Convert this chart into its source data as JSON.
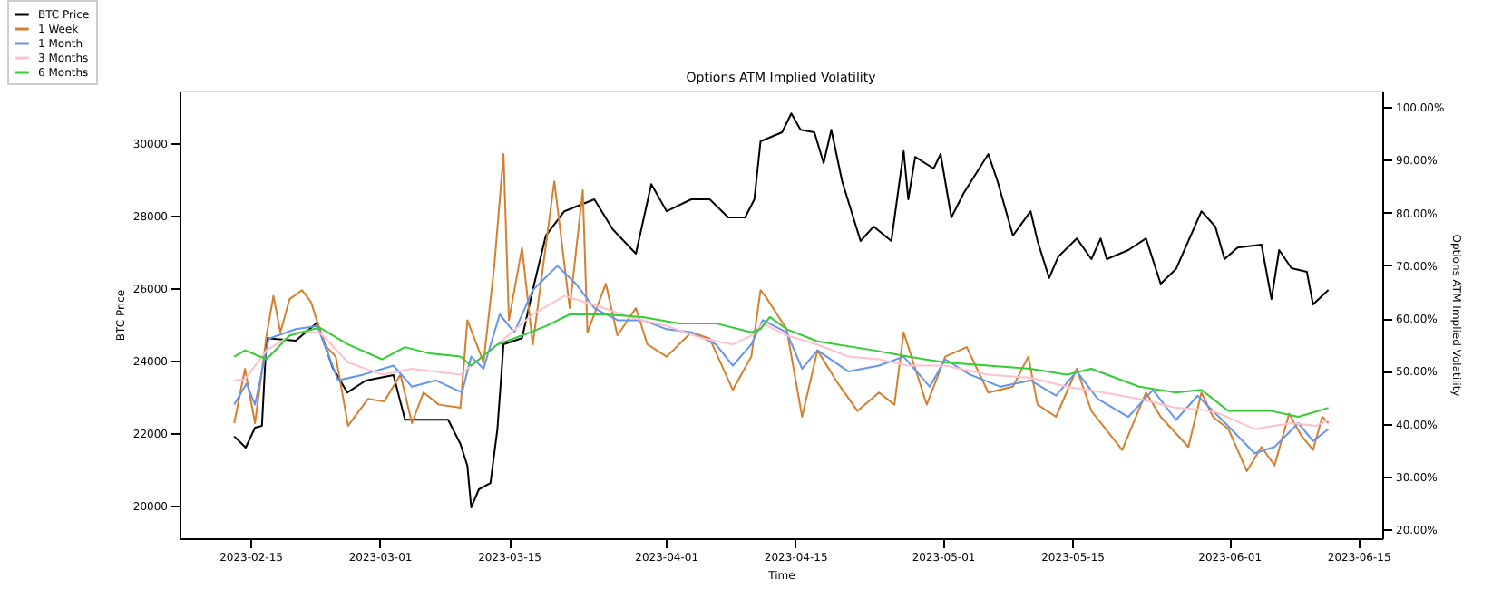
{
  "chart_data": {
    "type": "line",
    "title": "Options ATM Implied Volatility",
    "xlabel": "Time",
    "ylabel": "BTC Price",
    "y2label": "Options ATM Implied Volatility",
    "xlim": [
      "2023-02-07T08:00",
      "2023-06-17T14:00"
    ],
    "xticks": [
      "2023-02-15",
      "2023-03-01",
      "2023-03-15",
      "2023-04-01",
      "2023-04-15",
      "2023-05-01",
      "2023-05-15",
      "2023-06-01",
      "2023-06-15"
    ],
    "ylim": [
      19100,
      31450
    ],
    "yticks": [
      20000,
      22000,
      24000,
      26000,
      28000,
      30000
    ],
    "y2lim": [
      18.3,
      103.1
    ],
    "y2ticks": [
      {
        "value": 20,
        "label": "20.00%"
      },
      {
        "value": 30,
        "label": "30.00%"
      },
      {
        "value": 40,
        "label": "40.00%"
      },
      {
        "value": 50,
        "label": "50.00%"
      },
      {
        "value": 60,
        "label": "60.00%"
      },
      {
        "value": 70,
        "label": "70.00%"
      },
      {
        "value": 80,
        "label": "80.00%"
      },
      {
        "value": 90,
        "label": "90.00%"
      },
      {
        "value": 100,
        "label": "100.00%"
      }
    ],
    "legend": "top left",
    "grid": false,
    "marker": "none",
    "line_style": "solid",
    "series": [
      {
        "name": "BTC Price",
        "color": "#000000",
        "x": [
          "2023-02-13T06:00",
          "2023-02-14T12:00",
          "2023-02-15T12:00",
          "2023-02-16T06:00",
          "2023-02-16T18:00",
          "2023-02-19T22:00",
          "2023-02-22T06:00",
          "2023-02-23T22:00",
          "2023-02-25T12:00",
          "2023-02-27T12:00",
          "2023-03-02T12:00",
          "2023-03-03T18:00",
          "2023-03-05T18:00",
          "2023-03-08T10:00",
          "2023-03-09T18:00",
          "2023-03-10T12:00",
          "2023-03-10T22:00",
          "2023-03-11T18:00",
          "2023-03-13T00:00",
          "2023-03-13T18:00",
          "2023-03-14T10:00",
          "2023-03-16T10:00",
          "2023-03-17T14:00",
          "2023-03-19T00:00",
          "2023-03-21T00:00",
          "2023-03-24T06:00",
          "2023-03-26T06:00",
          "2023-03-28T18:00",
          "2023-03-30T10:00",
          "2023-04-01T02:00",
          "2023-04-03T18:00",
          "2023-04-05T18:00",
          "2023-04-07T18:00",
          "2023-04-09T14:00",
          "2023-04-10T14:00",
          "2023-04-11T06:00",
          "2023-04-13T14:00",
          "2023-04-14T14:00",
          "2023-04-15T14:00",
          "2023-04-17T02:00",
          "2023-04-18T02:00",
          "2023-04-18T22:00",
          "2023-04-20T02:00",
          "2023-04-22T02:00",
          "2023-04-23T12:00",
          "2023-04-25T10:00",
          "2023-04-26T18:00",
          "2023-04-27T06:00",
          "2023-04-28T00:00",
          "2023-04-30T00:00",
          "2023-04-30T18:00",
          "2023-05-01T22:00",
          "2023-05-03T06:00",
          "2023-05-05T22:00",
          "2023-05-06T22:00",
          "2023-05-08T14:00",
          "2023-05-10T12:00",
          "2023-05-11T06:00",
          "2023-05-12T12:00",
          "2023-05-13T12:00",
          "2023-05-15T12:00",
          "2023-05-17T02:00",
          "2023-05-18T02:00",
          "2023-05-18T18:00",
          "2023-05-21T02:00",
          "2023-05-23T00:00",
          "2023-05-24T14:00",
          "2023-05-26T06:00",
          "2023-05-29T00:00",
          "2023-05-30T12:00",
          "2023-05-31T12:00",
          "2023-06-01T22:00",
          "2023-06-04T12:00",
          "2023-06-05T14:00",
          "2023-06-06T10:00",
          "2023-06-07T18:00",
          "2023-06-09T10:00",
          "2023-06-10T02:00",
          "2023-06-11T18:00"
        ],
        "values": [
          21910,
          21600,
          22150,
          22200,
          24620,
          24550,
          25050,
          23800,
          23120,
          23450,
          23600,
          22370,
          22370,
          22370,
          21700,
          21100,
          19950,
          20450,
          20620,
          22100,
          24450,
          24620,
          25950,
          27450,
          28120,
          28450,
          27620,
          26950,
          28870,
          28120,
          28450,
          28450,
          27950,
          27950,
          28450,
          30050,
          30300,
          30820,
          30370,
          30300,
          29450,
          30370,
          28950,
          27300,
          27700,
          27300,
          29780,
          28450,
          29620,
          29300,
          29700,
          27950,
          28620,
          29700,
          28950,
          27450,
          28120,
          27300,
          26280,
          26870,
          27370,
          26800,
          27370,
          26800,
          27050,
          27370,
          26120,
          26530,
          28120,
          27700,
          26800,
          27120,
          27200,
          25700,
          27050,
          26550,
          26450,
          25550,
          25950
        ]
      },
      {
        "name": "1 Week",
        "color": "#d57f2f",
        "axis": "y2",
        "x": [
          "2023-02-13T06:00",
          "2023-02-14T10:00",
          "2023-02-15T12:00",
          "2023-02-16T18:00",
          "2023-02-17T12:00",
          "2023-02-18T06:00",
          "2023-02-19T06:00",
          "2023-02-20T14:00",
          "2023-02-21T14:00",
          "2023-02-23T00:00",
          "2023-02-24T06:00",
          "2023-02-25T14:00",
          "2023-02-27T18:00",
          "2023-03-01T12:00",
          "2023-03-03T06:00",
          "2023-03-04T12:00",
          "2023-03-05T18:00",
          "2023-03-07T10:00",
          "2023-03-09T18:00",
          "2023-03-10T12:00",
          "2023-03-12T06:00",
          "2023-03-13T10:00",
          "2023-03-14T10:00",
          "2023-03-15T00:00",
          "2023-03-16T10:00",
          "2023-03-17T14:00",
          "2023-03-19T22:00",
          "2023-03-21T14:00",
          "2023-03-23T00:00",
          "2023-03-23T12:00",
          "2023-03-25T12:00",
          "2023-03-26T18:00",
          "2023-03-28T18:00",
          "2023-03-30T00:00",
          "2023-04-01T02:00",
          "2023-04-03T18:00",
          "2023-04-05T18:00",
          "2023-04-08T06:00",
          "2023-04-10T06:00",
          "2023-04-11T06:00",
          "2023-04-11T18:00",
          "2023-04-14T02:00",
          "2023-04-15T18:00",
          "2023-04-17T10:00",
          "2023-04-19T10:00",
          "2023-04-21T18:00",
          "2023-04-24T02:00",
          "2023-04-25T18:00",
          "2023-04-26T18:00",
          "2023-04-29T06:00",
          "2023-05-01T06:00",
          "2023-05-03T14:00",
          "2023-05-05T22:00",
          "2023-05-08T14:00",
          "2023-05-10T06:00",
          "2023-05-11T06:00",
          "2023-05-13T06:00",
          "2023-05-15T12:00",
          "2023-05-17T02:00",
          "2023-05-20T10:00",
          "2023-05-23T00:00",
          "2023-05-24T14:00",
          "2023-05-27T14:00",
          "2023-05-29T00:00",
          "2023-05-30T06:00",
          "2023-05-31T22:00",
          "2023-06-02T22:00",
          "2023-06-04T12:00",
          "2023-06-05T22:00",
          "2023-06-07T12:00",
          "2023-06-08T18:00",
          "2023-06-10T02:00",
          "2023-06-11T02:00",
          "2023-06-11T18:00"
        ],
        "values": [
          40.1,
          50.4,
          40.1,
          56.7,
          64.2,
          57.3,
          63.6,
          65.3,
          63.0,
          55.0,
          52.7,
          39.6,
          44.7,
          44.2,
          49.3,
          40.1,
          45.9,
          43.6,
          43.0,
          59.6,
          51.6,
          69.9,
          91.1,
          59.6,
          73.3,
          55.0,
          85.9,
          61.9,
          84.2,
          57.3,
          66.5,
          56.7,
          61.9,
          55.0,
          52.7,
          57.3,
          56.1,
          46.4,
          52.7,
          65.3,
          64.2,
          57.9,
          41.3,
          53.9,
          48.2,
          42.4,
          45.9,
          43.6,
          57.3,
          43.6,
          52.7,
          54.5,
          45.9,
          47.0,
          52.7,
          43.6,
          41.3,
          50.4,
          42.4,
          35.0,
          45.9,
          41.3,
          35.6,
          45.9,
          41.3,
          39.0,
          31.0,
          35.6,
          32.1,
          41.9,
          37.9,
          35.0,
          41.3,
          40.1
        ]
      },
      {
        "name": "1 Month",
        "color": "#6495ed",
        "axis": "y2",
        "x": [
          "2023-02-13T06:00",
          "2023-02-14T14:00",
          "2023-02-15T12:00",
          "2023-02-17T00:00",
          "2023-02-19T22:00",
          "2023-02-22T06:00",
          "2023-02-24T12:00",
          "2023-02-27T06:00",
          "2023-03-02T12:00",
          "2023-03-04T12:00",
          "2023-03-07T02:00",
          "2023-03-09T22:00",
          "2023-03-10T22:00",
          "2023-03-12T06:00",
          "2023-03-14T00:00",
          "2023-03-15T14:00",
          "2023-03-17T14:00",
          "2023-03-20T06:00",
          "2023-03-22T06:00",
          "2023-03-24T06:00",
          "2023-03-26T18:00",
          "2023-03-29T12:00",
          "2023-04-01T02:00",
          "2023-04-03T18:00",
          "2023-04-06T10:00",
          "2023-04-08T06:00",
          "2023-04-10T06:00",
          "2023-04-11T12:00",
          "2023-04-14T02:00",
          "2023-04-15T18:00",
          "2023-04-17T10:00",
          "2023-04-20T18:00",
          "2023-04-24T02:00",
          "2023-04-26T18:00",
          "2023-04-29T14:00",
          "2023-05-01T06:00",
          "2023-05-03T22:00",
          "2023-05-07T06:00",
          "2023-05-10T12:00",
          "2023-05-13T06:00",
          "2023-05-15T12:00",
          "2023-05-17T18:00",
          "2023-05-21T02:00",
          "2023-05-23T18:00",
          "2023-05-26T06:00",
          "2023-05-28T14:00",
          "2023-05-31T14:00",
          "2023-06-03T18:00",
          "2023-06-05T22:00",
          "2023-06-08T12:00",
          "2023-06-10T02:00",
          "2023-06-11T18:00"
        ],
        "values": [
          43.6,
          47.6,
          43.6,
          56.1,
          57.9,
          58.5,
          48.2,
          49.3,
          51.0,
          47.0,
          48.2,
          45.9,
          52.7,
          50.4,
          60.7,
          57.3,
          65.3,
          69.9,
          66.5,
          61.9,
          59.6,
          59.6,
          57.9,
          57.3,
          55.0,
          51.0,
          55.0,
          59.6,
          57.3,
          50.4,
          53.9,
          49.9,
          51.0,
          52.7,
          47.0,
          52.2,
          49.3,
          47.0,
          48.2,
          45.3,
          49.9,
          44.7,
          41.3,
          46.4,
          40.7,
          45.3,
          40.1,
          34.4,
          35.6,
          40.1,
          36.7,
          39.0
        ]
      },
      {
        "name": "3 Months",
        "color": "#ffc0cb",
        "axis": "y2",
        "x": [
          "2023-02-13T06:00",
          "2023-02-14T10:00",
          "2023-02-16T18:00",
          "2023-02-19T22:00",
          "2023-02-22T12:00",
          "2023-02-25T14:00",
          "2023-03-01T06:00",
          "2023-03-04T12:00",
          "2023-03-09T18:00",
          "2023-03-10T22:00",
          "2023-03-13T18:00",
          "2023-03-17T14:00",
          "2023-03-21T00:00",
          "2023-03-24T06:00",
          "2023-03-28T02:00",
          "2023-04-01T02:00",
          "2023-04-05T02:00",
          "2023-04-08T06:00",
          "2023-04-10T06:00",
          "2023-04-11T12:00",
          "2023-04-14T02:00",
          "2023-04-17T10:00",
          "2023-04-20T18:00",
          "2023-04-24T02:00",
          "2023-04-27T06:00",
          "2023-05-01T06:00",
          "2023-05-05T22:00",
          "2023-05-10T12:00",
          "2023-05-14T10:00",
          "2023-05-18T10:00",
          "2023-05-22T06:00",
          "2023-05-26T06:00",
          "2023-05-30T06:00",
          "2023-06-03T18:00",
          "2023-06-07T18:00",
          "2023-06-10T10:00",
          "2023-06-11T18:00"
        ],
        "values": [
          48.2,
          48.4,
          53.9,
          57.3,
          57.3,
          51.6,
          49.3,
          50.4,
          49.3,
          51.0,
          55.0,
          60.7,
          64.2,
          62.5,
          60.2,
          58.5,
          56.1,
          55.0,
          56.7,
          59.0,
          56.7,
          55.0,
          52.7,
          52.2,
          51.0,
          51.0,
          49.3,
          48.7,
          47.0,
          45.9,
          44.7,
          43.0,
          42.4,
          39.0,
          40.1,
          39.6,
          40.7
        ]
      },
      {
        "name": "6 Months",
        "color": "#32cd32",
        "axis": "y2",
        "x": [
          "2023-02-13T06:00",
          "2023-02-14T10:00",
          "2023-02-16T18:00",
          "2023-02-19T06:00",
          "2023-02-22T12:00",
          "2023-02-25T14:00",
          "2023-03-01T06:00",
          "2023-03-03T18:00",
          "2023-03-06T10:00",
          "2023-03-09T18:00",
          "2023-03-10T22:00",
          "2023-03-13T18:00",
          "2023-03-16T10:00",
          "2023-03-19T00:00",
          "2023-03-21T14:00",
          "2023-03-25T12:00",
          "2023-03-29T12:00",
          "2023-04-02T10:00",
          "2023-04-06T10:00",
          "2023-04-10T06:00",
          "2023-04-11T06:00",
          "2023-04-12T06:00",
          "2023-04-14T02:00",
          "2023-04-17T10:00",
          "2023-04-23T12:00",
          "2023-04-27T06:00",
          "2023-05-01T06:00",
          "2023-05-05T22:00",
          "2023-05-10T12:00",
          "2023-05-14T10:00",
          "2023-05-17T02:00",
          "2023-05-22T06:00",
          "2023-05-26T06:00",
          "2023-05-29T00:00",
          "2023-05-31T22:00",
          "2023-06-05T14:00",
          "2023-06-08T12:00",
          "2023-06-11T18:00"
        ],
        "values": [
          52.7,
          53.9,
          52.2,
          56.7,
          58.2,
          55.0,
          52.2,
          54.5,
          53.3,
          52.7,
          51.0,
          55.0,
          56.7,
          58.5,
          60.7,
          60.7,
          60.2,
          59.0,
          59.0,
          57.3,
          57.9,
          60.2,
          57.9,
          55.6,
          53.9,
          52.7,
          51.6,
          51.0,
          50.4,
          49.3,
          50.4,
          47.0,
          45.9,
          46.4,
          42.4,
          42.4,
          41.3,
          43.0
        ]
      }
    ]
  }
}
